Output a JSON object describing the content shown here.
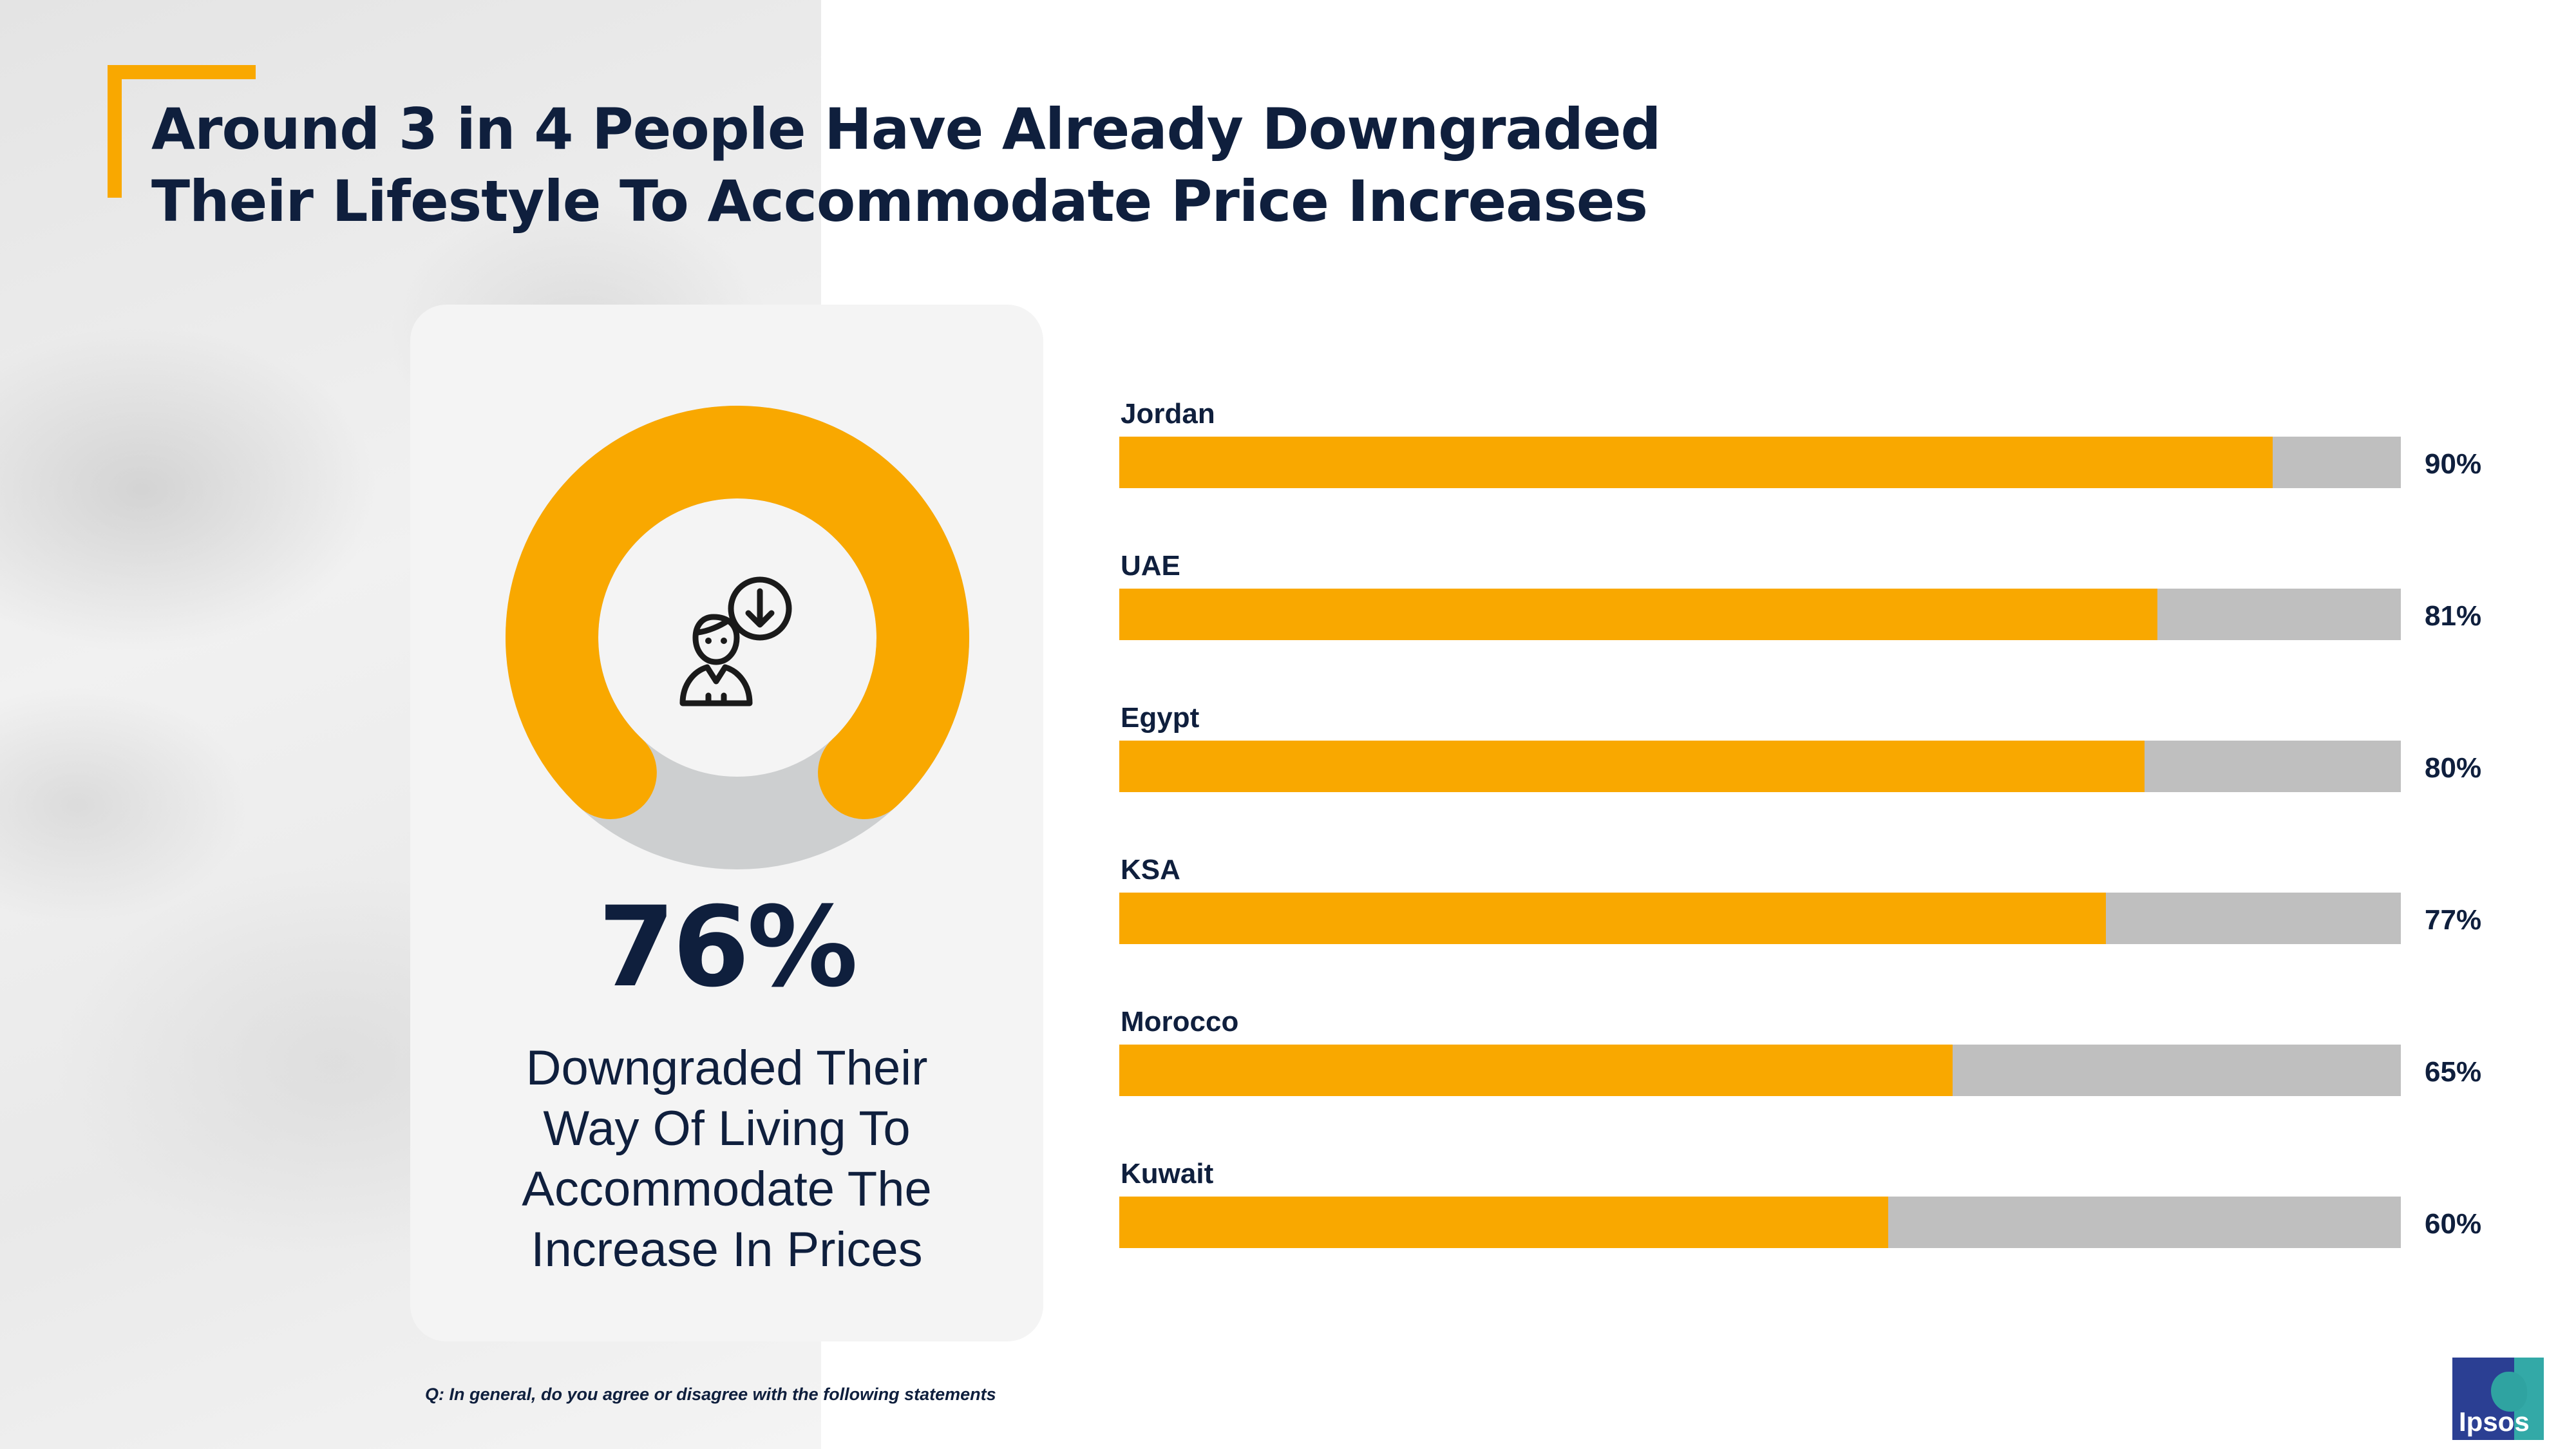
{
  "title": {
    "line1": "Around 3 in 4 People Have Already Downgraded",
    "line2": "Their Lifestyle To Accommodate Price Increases"
  },
  "summary": {
    "percent_label": "76%",
    "percent_value": 76,
    "caption_lines": [
      "Downgraded Their",
      "Way Of Living To",
      "Accommodate The",
      "Increase In Prices"
    ]
  },
  "footnote": "Q: In general, do you agree or disagree with the following statements",
  "logo": {
    "text": "Ipsos"
  },
  "colors": {
    "accent": "#f9a800",
    "track": "#bfbfbf",
    "donut_track": "#cdcfd0",
    "navy": "#0f1f3d"
  },
  "chart_data": {
    "type": "bar",
    "orientation": "horizontal",
    "categories": [
      "Jordan",
      "UAE",
      "Egypt",
      "KSA",
      "Morocco",
      "Kuwait"
    ],
    "values": [
      90,
      81,
      80,
      77,
      65,
      60
    ],
    "value_labels": [
      "90%",
      "81%",
      "80%",
      "77%",
      "65%",
      "60%"
    ],
    "xlim": [
      0,
      100
    ],
    "grid": false
  }
}
